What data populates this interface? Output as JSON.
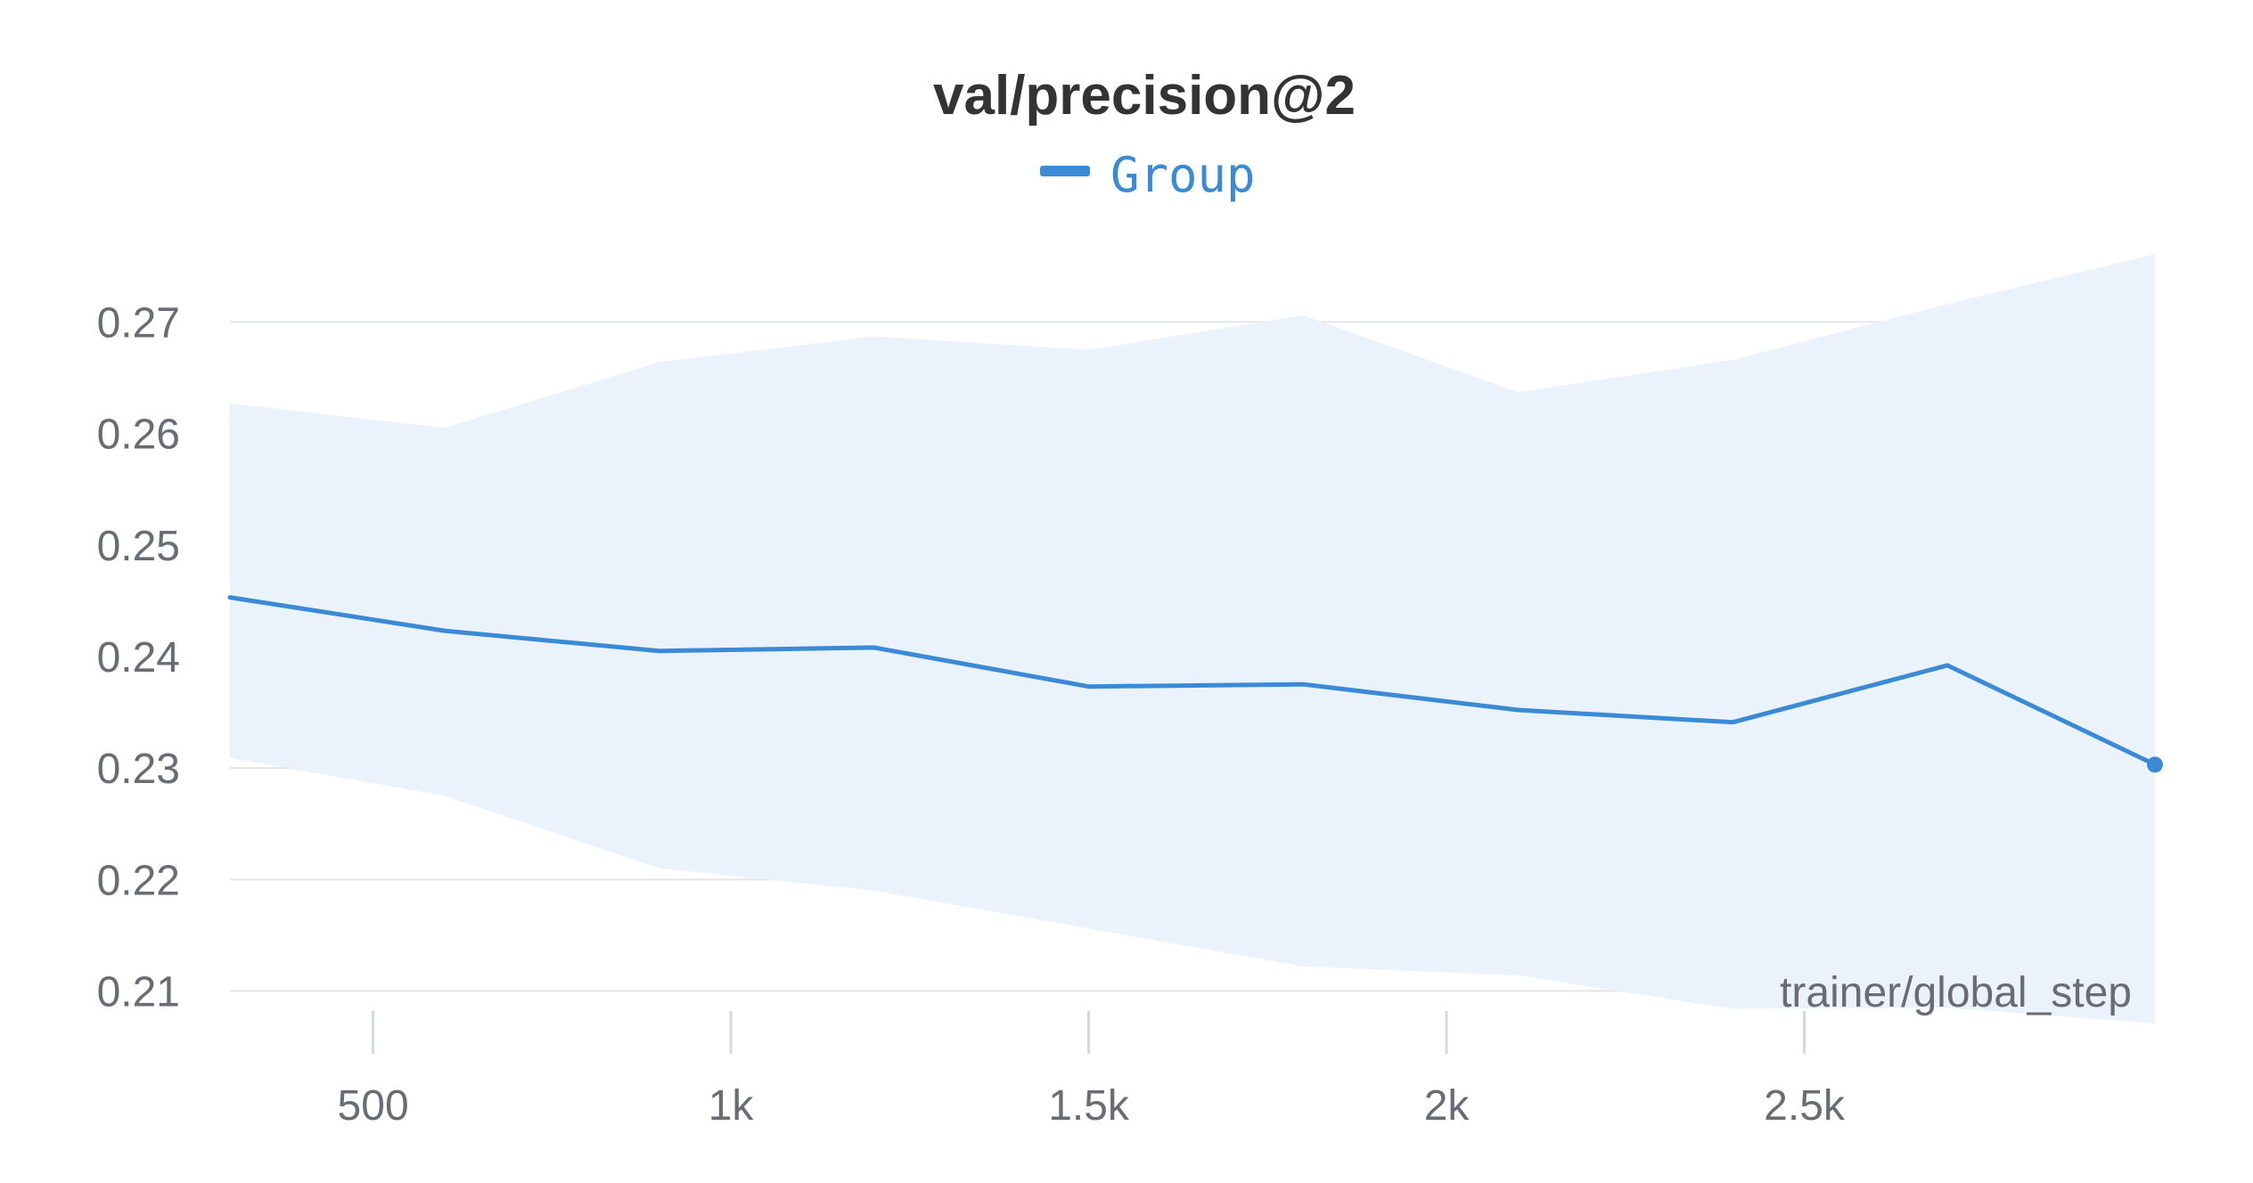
{
  "chart_data": {
    "type": "line",
    "title": "val/precision@2",
    "xlabel": "trainer/global_step",
    "ylabel": "",
    "xlim": [
      300,
      2990
    ],
    "ylim": [
      0.2054,
      0.2805
    ],
    "x_ticks": [
      500,
      1000,
      1500,
      2000,
      2500
    ],
    "x_tick_labels": [
      "500",
      "1k",
      "1.5k",
      "2k",
      "2.5k"
    ],
    "y_ticks": [
      0.21,
      0.22,
      0.23,
      0.24,
      0.25,
      0.26,
      0.27
    ],
    "y_tick_labels": [
      "0.21",
      "0.22",
      "0.23",
      "0.24",
      "0.25",
      "0.26",
      "0.27"
    ],
    "grid": true,
    "legend_position": "top-center",
    "colors": {
      "line": "#3a8ad6",
      "band": "#eaf2fb"
    },
    "series": [
      {
        "name": "Group",
        "x": [
          300,
          600,
          900,
          1200,
          1500,
          1800,
          2100,
          2400,
          2700,
          2990
        ],
        "y": [
          0.2453,
          0.2423,
          0.2405,
          0.2408,
          0.2373,
          0.2375,
          0.2352,
          0.2341,
          0.2392,
          0.2303
        ],
        "upper": [
          0.2627,
          0.2605,
          0.2664,
          0.2687,
          0.2675,
          0.2706,
          0.2637,
          0.2666,
          0.2716,
          0.2761
        ],
        "lower": [
          0.2309,
          0.2275,
          0.221,
          0.219,
          0.2156,
          0.2122,
          0.2114,
          0.2084,
          0.2085,
          0.2071
        ]
      }
    ]
  }
}
